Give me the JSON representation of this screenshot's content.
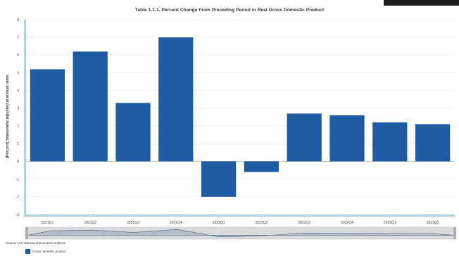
{
  "chart_data": {
    "type": "bar",
    "title": "Table 1.1.1. Percent Change From Preceding Period in Real Gross Domestic Product",
    "ylabel": "[Percent] Seasonally adjusted at annual rates",
    "xlabel": "",
    "categories": [
      "2021Q1",
      "2021Q2",
      "2021Q3",
      "2021Q4",
      "2022Q1",
      "2022Q2",
      "2022Q3",
      "2022Q4",
      "2023Q1",
      "2023Q2"
    ],
    "series": [
      {
        "name": "Gross domestic product",
        "values": [
          5.2,
          6.2,
          3.3,
          7.0,
          -2.0,
          -0.6,
          2.7,
          2.6,
          2.2,
          2.1
        ]
      }
    ],
    "ylim": [
      -3,
      8
    ],
    "yticks": [
      "8",
      "7",
      "6",
      "5",
      "4",
      "3",
      "2",
      "1",
      "0",
      "-1",
      "-2",
      "-3"
    ],
    "grid": true,
    "legend": "bottom-left",
    "bar_color": "#1f5ba3"
  },
  "source": "Source: U.S. Bureau of Economic Analysis"
}
